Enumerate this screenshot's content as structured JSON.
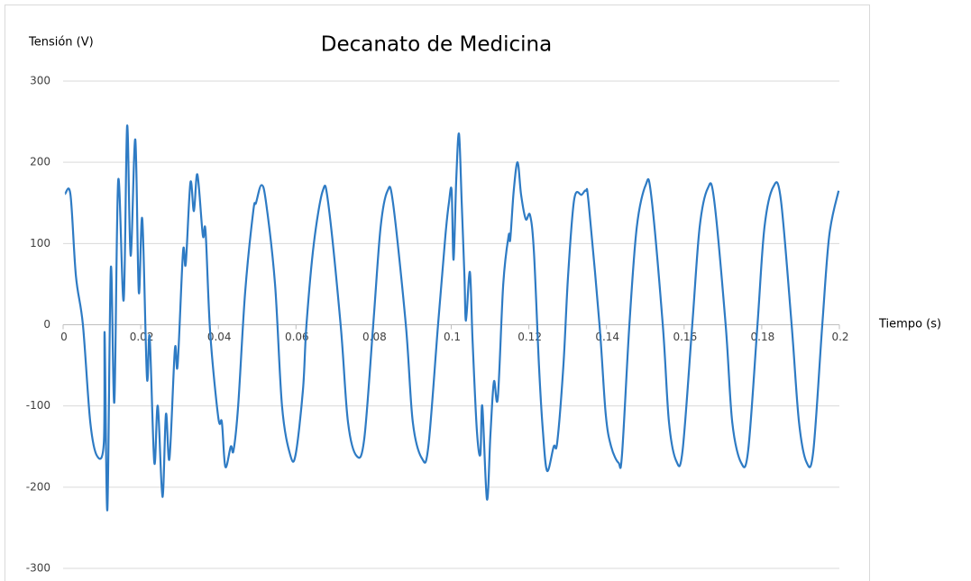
{
  "chart_data": {
    "type": "line",
    "title": "Decanato de Medicina",
    "x_label": "Tiempo (s)",
    "y_label": "Tensión (V)",
    "color": "#2e7bc4",
    "grid": true,
    "xlim": [
      0,
      0.2
    ],
    "xticks": [
      0,
      0.02,
      0.04,
      0.06,
      0.08,
      0.1,
      0.12,
      0.14,
      0.16,
      0.18,
      0.2
    ],
    "ylim": [
      -300,
      300
    ],
    "yticks": [
      -300,
      -200,
      -100,
      0,
      100,
      200,
      300
    ],
    "x": [
      0.0005,
      0.0019,
      0.0033,
      0.0051,
      0.007,
      0.0088,
      0.0105,
      0.0107,
      0.0114,
      0.0123,
      0.0132,
      0.0142,
      0.0156,
      0.0165,
      0.0174,
      0.0186,
      0.0195,
      0.0204,
      0.0216,
      0.0223,
      0.0235,
      0.0244,
      0.0256,
      0.0265,
      0.0274,
      0.0288,
      0.0295,
      0.0309,
      0.0316,
      0.0328,
      0.0337,
      0.0346,
      0.036,
      0.0367,
      0.0379,
      0.04,
      0.0409,
      0.0418,
      0.0432,
      0.0439,
      0.0451,
      0.0469,
      0.049,
      0.0497,
      0.0511,
      0.0523,
      0.0546,
      0.0564,
      0.0585,
      0.0599,
      0.0618,
      0.0627,
      0.0646,
      0.0669,
      0.0683,
      0.0715,
      0.0734,
      0.0757,
      0.0776,
      0.0799,
      0.0818,
      0.0836,
      0.085,
      0.0883,
      0.0901,
      0.0925,
      0.0941,
      0.0966,
      0.0985,
      0.0994,
      0.1001,
      0.1006,
      0.1013,
      0.102,
      0.1027,
      0.1034,
      0.1038,
      0.1048,
      0.1055,
      0.1066,
      0.1075,
      0.108,
      0.1092,
      0.1101,
      0.111,
      0.112,
      0.1134,
      0.1148,
      0.1152,
      0.1161,
      0.1171,
      0.118,
      0.1192,
      0.1203,
      0.1213,
      0.1226,
      0.1236,
      0.1247,
      0.1264,
      0.1273,
      0.1289,
      0.1301,
      0.1317,
      0.1336,
      0.1347,
      0.1354,
      0.1382,
      0.1398,
      0.1412,
      0.1431,
      0.144,
      0.1459,
      0.1478,
      0.1501,
      0.1515,
      0.1545,
      0.1561,
      0.158,
      0.1596,
      0.1621,
      0.164,
      0.1661,
      0.1677,
      0.1707,
      0.1724,
      0.1747,
      0.1765,
      0.1789,
      0.1807,
      0.183,
      0.1849,
      0.1877,
      0.1896,
      0.1916,
      0.1933,
      0.1956,
      0.1974,
      0.1998
    ],
    "values": [
      161,
      160,
      60,
      0,
      -120,
      -162,
      -145,
      -10,
      -228,
      70,
      -95,
      178,
      30,
      245,
      85,
      228,
      40,
      130,
      -65,
      -15,
      -170,
      -100,
      -212,
      -110,
      -165,
      -30,
      -50,
      90,
      75,
      175,
      140,
      185,
      110,
      115,
      -10,
      -115,
      -120,
      -175,
      -150,
      -155,
      -100,
      40,
      140,
      150,
      172,
      150,
      50,
      -100,
      -160,
      -160,
      -80,
      0,
      100,
      165,
      150,
      0,
      -120,
      -162,
      -140,
      0,
      120,
      165,
      150,
      0,
      -120,
      -165,
      -150,
      0,
      110,
      150,
      165,
      80,
      180,
      235,
      150,
      60,
      5,
      65,
      -20,
      -130,
      -160,
      -100,
      -215,
      -135,
      -70,
      -90,
      50,
      110,
      105,
      165,
      200,
      160,
      130,
      135,
      90,
      -50,
      -130,
      -180,
      -150,
      -145,
      -50,
      60,
      155,
      160,
      165,
      150,
      0,
      -110,
      -150,
      -170,
      -160,
      0,
      120,
      172,
      160,
      0,
      -120,
      -168,
      -155,
      0,
      120,
      168,
      155,
      0,
      -120,
      -170,
      -155,
      0,
      120,
      170,
      155,
      0,
      -120,
      -170,
      -155,
      0,
      110,
      165
    ]
  }
}
